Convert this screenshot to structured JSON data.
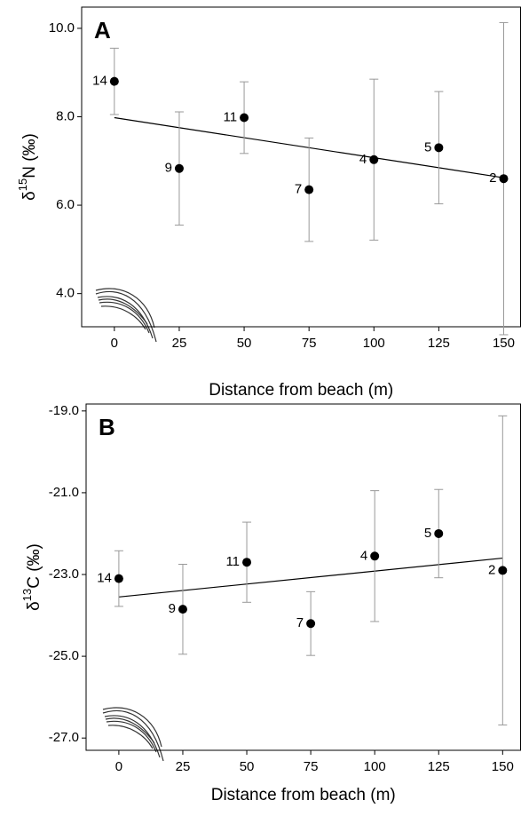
{
  "chart_data": [
    {
      "type": "scatter",
      "panel_label": "A",
      "x_label": "Distance from beach (m)",
      "y_label": {
        "prefix": "δ",
        "superscript": "15",
        "suffix": "N (‰)"
      },
      "x": [
        0,
        25,
        50,
        75,
        100,
        125,
        150
      ],
      "values": [
        8.8,
        6.83,
        7.98,
        6.35,
        7.03,
        7.3,
        6.6
      ],
      "errors": [
        0.75,
        1.28,
        0.81,
        1.17,
        1.82,
        1.27,
        3.53
      ],
      "point_labels": [
        "14",
        "9",
        "11",
        "7",
        "4",
        "5",
        "2"
      ],
      "trendline": {
        "x": [
          0,
          150
        ],
        "y": [
          7.98,
          6.62
        ]
      },
      "color": "#000000",
      "xlim": [
        -12.6,
        156.5
      ],
      "ylim": [
        3.25,
        10.48
      ],
      "xticks": [
        0,
        25,
        50,
        75,
        100,
        125,
        150
      ],
      "yticks": [
        {
          "value": 4,
          "label": "4.0"
        },
        {
          "value": 6,
          "label": "6.0"
        },
        {
          "value": 8,
          "label": "8.0"
        },
        {
          "value": 10,
          "label": "10.0"
        }
      ]
    },
    {
      "type": "scatter",
      "panel_label": "B",
      "x_label": "Distance from beach (m)",
      "y_label": {
        "prefix": "δ",
        "superscript": "13",
        "suffix": "C (‰)"
      },
      "x": [
        0,
        25,
        50,
        75,
        100,
        125,
        150
      ],
      "values": [
        -23.1,
        -23.85,
        -22.7,
        -24.2,
        -22.55,
        -22.0,
        -22.9
      ],
      "errors": [
        0.68,
        1.1,
        0.98,
        0.78,
        1.6,
        1.08,
        3.78
      ],
      "point_labels": [
        "14",
        "9",
        "11",
        "7",
        "4",
        "5",
        "2"
      ],
      "trendline": {
        "x": [
          0,
          150
        ],
        "y": [
          -23.55,
          -22.6
        ]
      },
      "color": "#000000",
      "xlim": [
        -12.8,
        157
      ],
      "ylim": [
        -27.3,
        -18.83
      ],
      "xticks": [
        0,
        25,
        50,
        75,
        100,
        125,
        150
      ],
      "yticks": [
        {
          "value": -27,
          "label": "-27.0"
        },
        {
          "value": -25,
          "label": "-25.0"
        },
        {
          "value": -23,
          "label": "-23.0"
        },
        {
          "value": -21,
          "label": "-21.0"
        },
        {
          "value": -19,
          "label": "-19.0"
        }
      ]
    }
  ]
}
